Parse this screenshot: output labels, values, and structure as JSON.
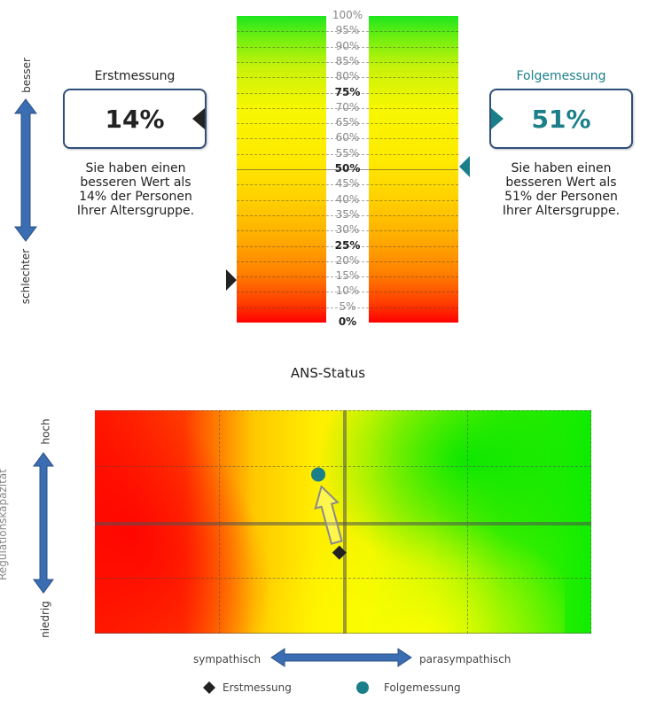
{
  "scale": {
    "labels": [
      "100%",
      "95%",
      "90%",
      "85%",
      "80%",
      "75%",
      "70%",
      "65%",
      "60%",
      "55%",
      "50%",
      "45%",
      "40%",
      "35%",
      "30%",
      "25%",
      "20%",
      "15%",
      "10%",
      "5%",
      "0%"
    ],
    "bold": [
      "75%",
      "50%",
      "25%",
      "0%"
    ],
    "axis_top": "besser",
    "axis_bottom": "schlechter",
    "marker_first_percentile": 14,
    "marker_second_percentile": 51
  },
  "first": {
    "title": "Erstmessung",
    "value": "14%",
    "desc": "Sie haben einen\nbesseren Wert als\n14% der Personen\nIhrer Altersgruppe.",
    "color": "#222222"
  },
  "second": {
    "title": "Folgemessung",
    "value": "51%",
    "desc": "Sie haben einen\nbesseren Wert als\n51% der Personen\nIhrer Altersgruppe.",
    "color": "#1b7f8a"
  },
  "chart_data": {
    "type": "scatter",
    "title": "ANS-Status",
    "xlabel_left": "sympathisch",
    "xlabel_right": "parasympathisch",
    "ylabel": "Regulationskapazität",
    "ylabel_top": "hoch",
    "ylabel_bottom": "niedrig",
    "xlim": [
      -2,
      2
    ],
    "ylim": [
      -2,
      2
    ],
    "series": [
      {
        "name": "Erstmessung",
        "marker": "diamond",
        "color": "#222222",
        "x": -0.03,
        "y": -0.55
      },
      {
        "name": "Folgemessung",
        "marker": "circle",
        "color": "#1b7f8a",
        "x": -0.2,
        "y": 0.85
      }
    ],
    "grid": true
  }
}
